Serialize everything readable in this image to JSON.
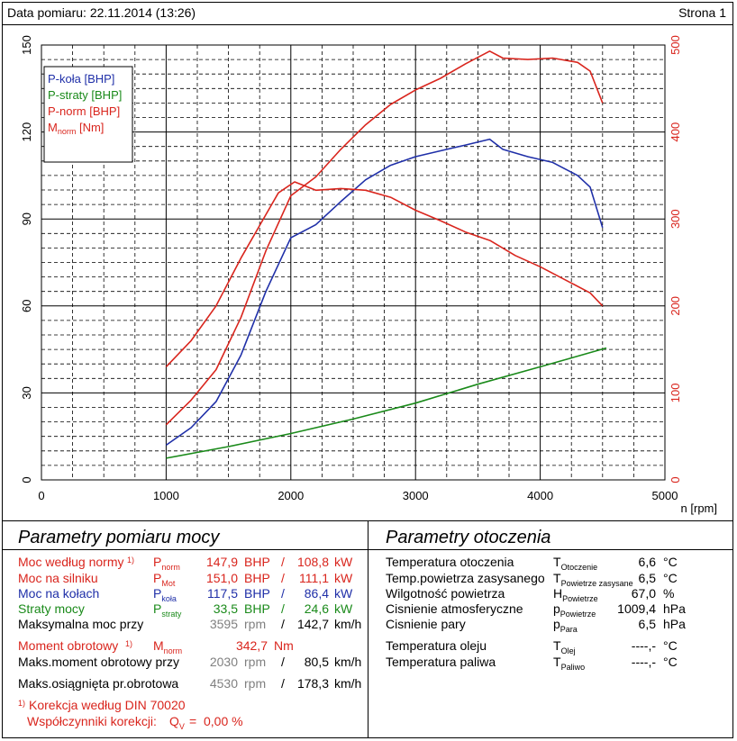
{
  "header": {
    "date": "Data pomiaru: 22.11.2014 (13:26)",
    "page": "Strona 1"
  },
  "colors": {
    "p_kola": "#1f2fa8",
    "p_straty": "#1a8a1a",
    "p_norm": "#d9251d",
    "m_norm": "#d9251d",
    "right_axis": "#d9251d"
  },
  "chart_data": {
    "type": "line",
    "xlabel": "n [rpm]",
    "xlim": [
      0,
      5000
    ],
    "xticks": [
      0,
      1000,
      2000,
      3000,
      4000,
      5000
    ],
    "ylim_left": [
      0,
      150
    ],
    "yticks_left": [
      0,
      30,
      60,
      90,
      120,
      150
    ],
    "ylim_right": [
      0,
      500
    ],
    "yticks_right": [
      0,
      100,
      200,
      300,
      400,
      500
    ],
    "grid": true,
    "legend": "top-left",
    "legend_items": [
      {
        "label": "P-koła [BHP]",
        "color": "#1f2fa8"
      },
      {
        "label": "P-straty [BHP]",
        "color": "#1a8a1a"
      },
      {
        "label": "P-norm [BHP]",
        "color": "#d9251d"
      },
      {
        "label": "M",
        "sub": "norm",
        "suffix": " [Nm]",
        "color": "#d9251d"
      }
    ],
    "series": [
      {
        "name": "P-koła [BHP]",
        "axis": "left",
        "color": "#1f2fa8",
        "x": [
          1000,
          1200,
          1400,
          1600,
          1800,
          2000,
          2200,
          2400,
          2600,
          2800,
          3000,
          3200,
          3400,
          3595,
          3700,
          3900,
          4100,
          4300,
          4400,
          4500
        ],
        "y": [
          12.0,
          18.0,
          27.0,
          43.0,
          65.0,
          83.5,
          88.0,
          96.0,
          103.5,
          108.5,
          111.5,
          113.5,
          115.5,
          117.5,
          114.0,
          111.5,
          109.5,
          105.0,
          101.0,
          87.0
        ]
      },
      {
        "name": "P-straty [BHP]",
        "axis": "left",
        "color": "#1a8a1a",
        "x": [
          1000,
          1500,
          2000,
          2500,
          3000,
          3500,
          4000,
          4530
        ],
        "y": [
          7.5,
          11.5,
          16.0,
          21.0,
          26.5,
          33.0,
          39.0,
          45.5
        ]
      },
      {
        "name": "P-norm [BHP]",
        "axis": "left",
        "color": "#d9251d",
        "x": [
          1000,
          1200,
          1400,
          1600,
          1800,
          2000,
          2200,
          2400,
          2600,
          2800,
          3000,
          3200,
          3400,
          3595,
          3700,
          3900,
          4100,
          4300,
          4400,
          4500
        ],
        "y": [
          19.0,
          27.5,
          38.0,
          56.0,
          79.0,
          98.0,
          104.5,
          114.0,
          122.5,
          129.5,
          134.5,
          138.5,
          143.5,
          147.9,
          145.5,
          145.0,
          145.5,
          144.0,
          141.0,
          130.0
        ]
      },
      {
        "name": "M",
        "axis": "right",
        "color": "#d9251d",
        "x": [
          1000,
          1200,
          1400,
          1600,
          1800,
          1900,
          2030,
          2200,
          2400,
          2600,
          2800,
          3000,
          3200,
          3400,
          3600,
          3800,
          4000,
          4200,
          4400,
          4500
        ],
        "y": [
          130.0,
          160.0,
          200.0,
          255.0,
          305.0,
          330.0,
          342.7,
          333.0,
          335.0,
          333.0,
          325.0,
          310.0,
          298.0,
          285.0,
          275.0,
          258.0,
          245.0,
          230.0,
          215.0,
          200.0
        ]
      }
    ]
  },
  "moc": {
    "title": "Parametry pomiaru mocy",
    "rows": [
      {
        "label": "Moc według normy",
        "note": "1)",
        "sym": "P",
        "sub": "norm",
        "v1": "147,9",
        "u1": "BHP",
        "sep": "/",
        "v2": "108,8",
        "u2": "kW",
        "cls": "red"
      },
      {
        "label": "Moc na silniku",
        "note": "",
        "sym": "P",
        "sub": "Mot",
        "v1": "151,0",
        "u1": "BHP",
        "sep": "/",
        "v2": "111,1",
        "u2": "kW",
        "cls": "red"
      },
      {
        "label": "Moc na kołach",
        "note": "",
        "sym": "P",
        "sub": "koła",
        "v1": "117,5",
        "u1": "BHP",
        "sep": "/",
        "v2": "86,4",
        "u2": "kW",
        "cls": "blue"
      },
      {
        "label": "Straty mocy",
        "note": "",
        "sym": "P",
        "sub": "straty",
        "v1": "33,5",
        "u1": "BHP",
        "sep": "/",
        "v2": "24,6",
        "u2": "kW",
        "cls": "green"
      },
      {
        "label": "Maksymalna moc przy",
        "note": "",
        "sym": "",
        "sub": "",
        "v1": "3595",
        "u1": "rpm",
        "sep": "/",
        "v2": "142,7",
        "u2": "km/h",
        "cls": ""
      }
    ],
    "moment": {
      "label": "Moment obrotowy",
      "note": "1)",
      "sym": "M",
      "sub": "norm",
      "value": "342,7",
      "unit": "Nm"
    },
    "max_moment": {
      "label": "Maks.moment obrotowy przy",
      "v1": "2030",
      "u1": "rpm",
      "sep": "/",
      "v2": "80,5",
      "u2": "km/h"
    },
    "max_rpm": {
      "label": "Maks.osiągnięta pr.obrotowa",
      "v1": "4530",
      "u1": "rpm",
      "sep": "/",
      "v2": "178,3",
      "u2": "km/h"
    },
    "korekcja_note": "1)",
    "korekcja": "Korekcja według DIN 70020",
    "wspolczynniki": "Współczynniki korekcji:",
    "q_sym": "Q",
    "q_sub": "V",
    "q_eq": "=",
    "q_value": "0,00 %"
  },
  "otoczenie": {
    "title": "Parametry otoczenia",
    "rows": [
      {
        "label": "Temperatura otoczenia",
        "sym": "T",
        "sub": "Otoczenie",
        "value": "6,6",
        "unit": "°C"
      },
      {
        "label": "Temp.powietrza zasysanego",
        "sym": "T",
        "sub": "Powietrze zasysane",
        "value": "6,5",
        "unit": "°C"
      },
      {
        "label": "Wilgotność powietrza",
        "sym": "H",
        "sub": "Powietrze",
        "value": "67,0",
        "unit": "%"
      },
      {
        "label": "Cisnienie atmosferyczne",
        "sym": "p",
        "sub": "Powietrze",
        "value": "1009,4",
        "unit": "hPa"
      },
      {
        "label": "Cisnienie pary",
        "sym": "p",
        "sub": "Para",
        "value": "6,5",
        "unit": "hPa"
      },
      {
        "label": "Temperatura oleju",
        "sym": "T",
        "sub": "Olej",
        "value": "----,-",
        "unit": "°C"
      },
      {
        "label": "Temperatura paliwa",
        "sym": "T",
        "sub": "Paliwo",
        "value": "----,-",
        "unit": "°C"
      }
    ]
  }
}
